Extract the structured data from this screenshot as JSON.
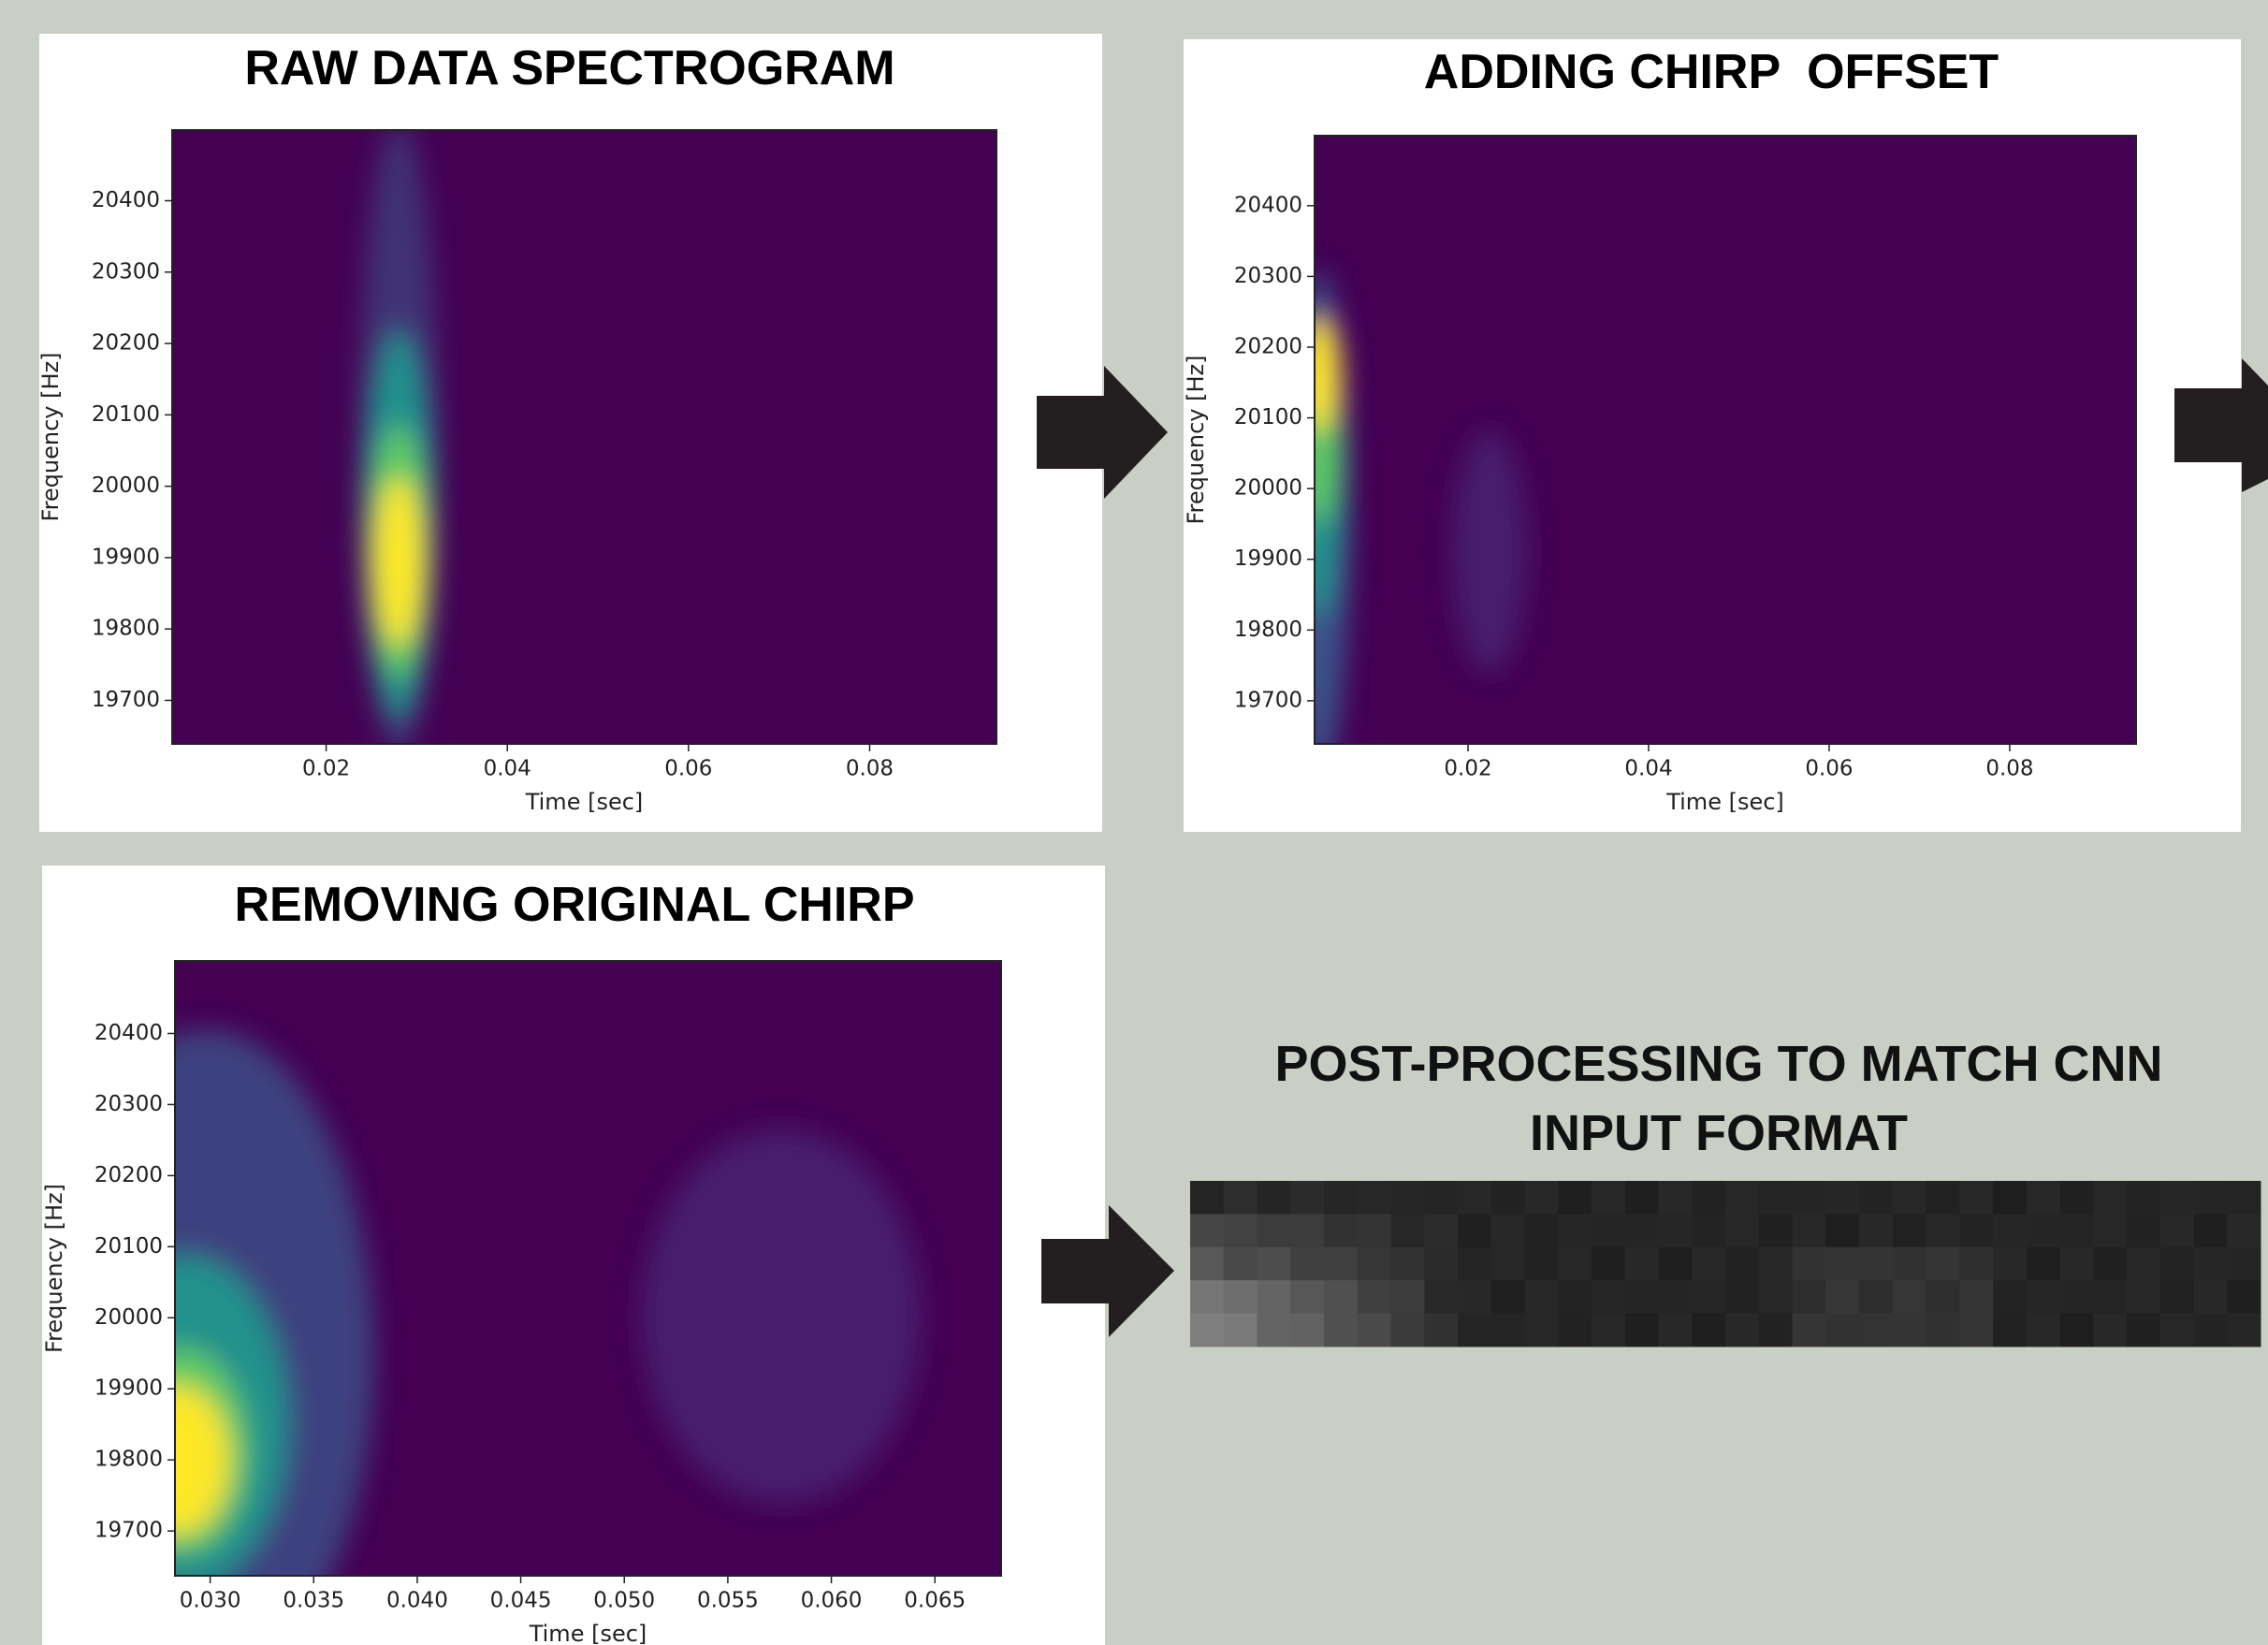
{
  "panels": [
    {
      "title": "RAW DATA SPECTROGRAM",
      "xlabel": "Time [sec]",
      "ylabel": "Frequency [Hz]",
      "xlim": [
        0.003,
        0.094
      ],
      "ylim": [
        19639,
        20499
      ],
      "xticks": [
        0.02,
        0.04,
        0.06,
        0.08
      ],
      "yticks": [
        19700,
        19800,
        19900,
        20000,
        20100,
        20200,
        20300,
        20400
      ]
    },
    {
      "title": "ADDING CHIRP  OFFSET",
      "xlabel": "Time [sec]",
      "ylabel": "Frequency [Hz]",
      "xlim": [
        0.003,
        0.094
      ],
      "ylim": [
        19639,
        20499
      ],
      "xticks": [
        0.02,
        0.04,
        0.06,
        0.08
      ],
      "yticks": [
        19700,
        19800,
        19900,
        20000,
        20100,
        20200,
        20300,
        20400
      ]
    },
    {
      "title": "REMOVING ORIGINAL CHIRP",
      "xlabel": "Time [sec]",
      "ylabel": "Frequency [Hz]",
      "xlim": [
        0.0283,
        0.0682
      ],
      "ylim": [
        19637,
        20502
      ],
      "xticks": [
        {
          "value": 0.03,
          "label": "0.030"
        },
        {
          "value": 0.035,
          "label": "0.035"
        },
        {
          "value": 0.04,
          "label": "0.040"
        },
        {
          "value": 0.045,
          "label": "0.045"
        },
        {
          "value": 0.05,
          "label": "0.050"
        },
        {
          "value": 0.055,
          "label": "0.055"
        },
        {
          "value": 0.06,
          "label": "0.060"
        },
        {
          "value": 0.065,
          "label": "0.065"
        }
      ],
      "yticks": [
        19700,
        19800,
        19900,
        20000,
        20100,
        20200,
        20300,
        20400
      ]
    }
  ],
  "cnn_panel": {
    "title": "POST-PROCESSING TO MATCH CNN INPUT FORMAT"
  }
}
